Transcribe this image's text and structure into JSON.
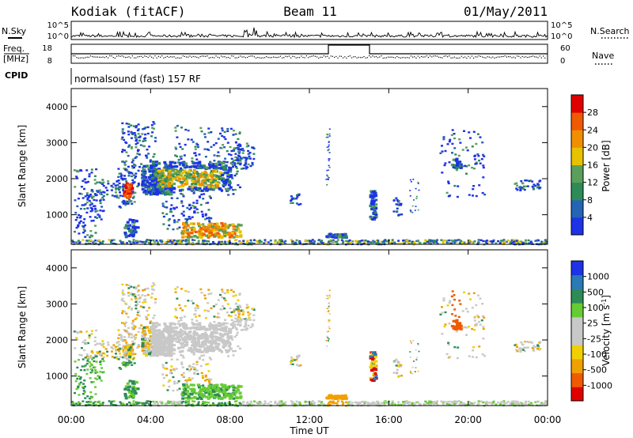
{
  "header": {
    "station": "Kodiak (fitACF)",
    "beam": "Beam 11",
    "date": "01/May/2011"
  },
  "strips": {
    "nsky_label": "N.Sky",
    "nsearch_label": "N.Search",
    "freq_label_1": "Freq.",
    "freq_label_2": "[MHz]",
    "cpid_label": "CPID",
    "nave_label": "Nave",
    "noise_ticks": [
      "10^5",
      "10^0"
    ],
    "freq_ticks": [
      "18",
      "8"
    ],
    "nave_ticks": [
      "60",
      "0"
    ],
    "cpid_text": "normalsound (fast) 157 RF"
  },
  "colors": {
    "power_scale": [
      "#1e32e6",
      "#2563b5",
      "#2e8b57",
      "#5aa05a",
      "#e8c200",
      "#f09000",
      "#f05a00",
      "#e00000"
    ],
    "velocity_scale": [
      "#e00000",
      "#f05a00",
      "#f0a000",
      "#f0d000",
      "#c8c8c8",
      "#c8c8c8",
      "#66cc33",
      "#2e8b57",
      "#2a7ab5",
      "#1e32e6"
    ]
  },
  "chart_data": [
    {
      "type": "heatmap",
      "title": "",
      "xlabel": "Time UT",
      "ylabel": "Slant Range [km]",
      "x_ticks": [
        "00:00",
        "04:00",
        "08:00",
        "12:00",
        "16:00",
        "20:00",
        "00:00"
      ],
      "y_ticks": [
        "1000",
        "2000",
        "3000",
        "4000"
      ],
      "xlim": [
        0,
        24
      ],
      "ylim": [
        180,
        4500
      ],
      "colorbar_label": "Power [dB]",
      "colorbar_ticks": [
        "4",
        "8",
        "12",
        "16",
        "20",
        "24",
        "28"
      ]
    },
    {
      "type": "heatmap",
      "title": "",
      "xlabel": "Time UT",
      "ylabel": "Slant Range [km]",
      "x_ticks": [
        "00:00",
        "04:00",
        "08:00",
        "12:00",
        "16:00",
        "20:00",
        "00:00"
      ],
      "y_ticks": [
        "1000",
        "2000",
        "3000",
        "4000"
      ],
      "xlim": [
        0,
        24
      ],
      "ylim": [
        180,
        4500
      ],
      "colorbar_label": "Velocity [m s",
      "colorbar_label_sup": "-1",
      "colorbar_label_end": "]",
      "colorbar_ticks": [
        "1000",
        "500",
        "100",
        "25",
        "-25",
        "-100",
        "-500",
        "-1000"
      ]
    }
  ]
}
